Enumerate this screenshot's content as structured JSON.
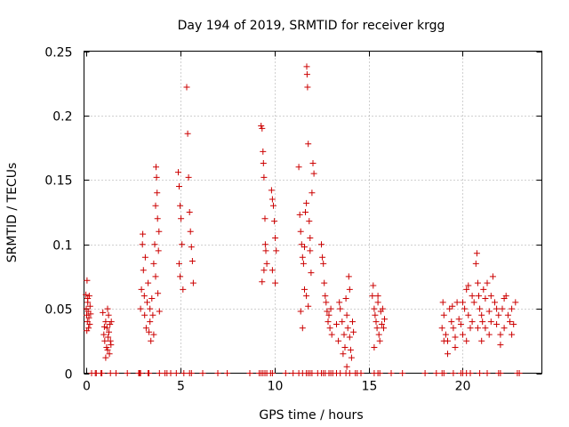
{
  "chart_data": {
    "type": "scatter",
    "title": "Day 194 of 2019, SRMTID for receiver krgg",
    "xlabel": "GPS time / hours",
    "ylabel": "SRMTID / TECUs",
    "xlim": [
      -0.1,
      24.2
    ],
    "ylim": [
      0,
      0.25
    ],
    "xticks": [
      0,
      5,
      10,
      15,
      20
    ],
    "xtick_labels": [
      "0",
      "5",
      "10",
      "15",
      "20"
    ],
    "yticks": [
      0,
      0.05,
      0.1,
      0.15,
      0.2,
      0.25
    ],
    "ytick_labels": [
      "0",
      "0.05",
      "0.1",
      "0.15",
      "0.2",
      "0.25"
    ],
    "grid": true,
    "marker": "+",
    "color": "#cc0000",
    "series": [
      {
        "name": "SRMTID",
        "points": [
          [
            0.0,
            0.061
          ],
          [
            0.02,
            0.05
          ],
          [
            0.04,
            0.045
          ],
          [
            0.06,
            0.072
          ],
          [
            0.08,
            0.04
          ],
          [
            0.1,
            0.055
          ],
          [
            0.12,
            0.048
          ],
          [
            0.14,
            0.035
          ],
          [
            0.16,
            0.043
          ],
          [
            0.18,
            0.06
          ],
          [
            0.2,
            0.038
          ],
          [
            0.22,
            0.052
          ],
          [
            0.25,
            0.046
          ],
          [
            0.1,
            0.058
          ],
          [
            0.05,
            0.033
          ],
          [
            0.9,
            0.047
          ],
          [
            0.95,
            0.03
          ],
          [
            1.0,
            0.025
          ],
          [
            1.05,
            0.04
          ],
          [
            1.1,
            0.02
          ],
          [
            1.12,
            0.035
          ],
          [
            1.15,
            0.018
          ],
          [
            1.18,
            0.028
          ],
          [
            1.2,
            0.045
          ],
          [
            1.22,
            0.032
          ],
          [
            1.25,
            0.015
          ],
          [
            1.28,
            0.038
          ],
          [
            1.3,
            0.025
          ],
          [
            1.33,
            0.022
          ],
          [
            1.35,
            0.04
          ],
          [
            1.05,
            0.012
          ],
          [
            1.15,
            0.05
          ],
          [
            0.98,
            0.036
          ],
          [
            2.9,
            0.05
          ],
          [
            2.95,
            0.065
          ],
          [
            3.0,
            0.1
          ],
          [
            3.02,
            0.108
          ],
          [
            3.05,
            0.08
          ],
          [
            3.1,
            0.06
          ],
          [
            3.12,
            0.045
          ],
          [
            3.15,
            0.09
          ],
          [
            3.2,
            0.035
          ],
          [
            3.25,
            0.055
          ],
          [
            3.3,
            0.07
          ],
          [
            3.35,
            0.032
          ],
          [
            3.4,
            0.04
          ],
          [
            3.45,
            0.025
          ],
          [
            3.5,
            0.058
          ],
          [
            3.55,
            0.045
          ],
          [
            3.6,
            0.085
          ],
          [
            3.65,
            0.1
          ],
          [
            3.7,
            0.075
          ],
          [
            3.72,
            0.16
          ],
          [
            3.75,
            0.152
          ],
          [
            3.78,
            0.14
          ],
          [
            3.8,
            0.12
          ],
          [
            3.82,
            0.062
          ],
          [
            3.85,
            0.095
          ],
          [
            3.88,
            0.11
          ],
          [
            3.9,
            0.048
          ],
          [
            3.6,
            0.03
          ],
          [
            3.4,
            0.05
          ],
          [
            3.7,
            0.13
          ],
          [
            4.9,
            0.156
          ],
          [
            4.95,
            0.145
          ],
          [
            5.0,
            0.13
          ],
          [
            5.05,
            0.12
          ],
          [
            5.1,
            0.1
          ],
          [
            5.15,
            0.065
          ],
          [
            5.0,
            0.075
          ],
          [
            4.95,
            0.085
          ],
          [
            5.35,
            0.222
          ],
          [
            5.4,
            0.186
          ],
          [
            5.45,
            0.152
          ],
          [
            5.5,
            0.125
          ],
          [
            5.55,
            0.11
          ],
          [
            5.6,
            0.098
          ],
          [
            5.65,
            0.087
          ],
          [
            5.7,
            0.07
          ],
          [
            9.3,
            0.192
          ],
          [
            9.35,
            0.19
          ],
          [
            9.4,
            0.172
          ],
          [
            9.42,
            0.163
          ],
          [
            9.45,
            0.152
          ],
          [
            9.5,
            0.12
          ],
          [
            9.52,
            0.1
          ],
          [
            9.55,
            0.095
          ],
          [
            9.6,
            0.085
          ],
          [
            9.35,
            0.071
          ],
          [
            9.45,
            0.08
          ],
          [
            9.85,
            0.142
          ],
          [
            9.9,
            0.135
          ],
          [
            9.95,
            0.13
          ],
          [
            10.0,
            0.118
          ],
          [
            10.05,
            0.105
          ],
          [
            10.1,
            0.095
          ],
          [
            9.9,
            0.08
          ],
          [
            10.05,
            0.07
          ],
          [
            11.3,
            0.16
          ],
          [
            11.35,
            0.123
          ],
          [
            11.4,
            0.11
          ],
          [
            11.45,
            0.1
          ],
          [
            11.5,
            0.09
          ],
          [
            11.55,
            0.085
          ],
          [
            11.6,
            0.098
          ],
          [
            11.65,
            0.125
          ],
          [
            11.7,
            0.132
          ],
          [
            11.72,
            0.238
          ],
          [
            11.74,
            0.232
          ],
          [
            11.76,
            0.222
          ],
          [
            11.8,
            0.178
          ],
          [
            11.85,
            0.118
          ],
          [
            11.9,
            0.095
          ],
          [
            11.95,
            0.078
          ],
          [
            12.0,
            0.14
          ],
          [
            12.05,
            0.163
          ],
          [
            12.1,
            0.155
          ],
          [
            11.4,
            0.048
          ],
          [
            11.5,
            0.035
          ],
          [
            11.6,
            0.065
          ],
          [
            11.7,
            0.06
          ],
          [
            11.8,
            0.052
          ],
          [
            11.9,
            0.105
          ],
          [
            12.5,
            0.1
          ],
          [
            12.55,
            0.09
          ],
          [
            12.6,
            0.085
          ],
          [
            12.65,
            0.07
          ],
          [
            12.7,
            0.06
          ],
          [
            12.75,
            0.055
          ],
          [
            12.8,
            0.048
          ],
          [
            12.85,
            0.04
          ],
          [
            12.9,
            0.045
          ],
          [
            12.95,
            0.035
          ],
          [
            13.0,
            0.05
          ],
          [
            13.05,
            0.03
          ],
          [
            13.3,
            0.038
          ],
          [
            13.4,
            0.025
          ],
          [
            13.5,
            0.05
          ],
          [
            13.6,
            0.04
          ],
          [
            13.7,
            0.03
          ],
          [
            13.75,
            0.02
          ],
          [
            13.8,
            0.058
          ],
          [
            13.85,
            0.045
          ],
          [
            13.9,
            0.035
          ],
          [
            13.95,
            0.075
          ],
          [
            14.0,
            0.028
          ],
          [
            14.05,
            0.018
          ],
          [
            14.1,
            0.012
          ],
          [
            14.15,
            0.04
          ],
          [
            14.2,
            0.032
          ],
          [
            13.85,
            0.005
          ],
          [
            14.0,
            0.065
          ],
          [
            13.45,
            0.055
          ],
          [
            13.65,
            0.015
          ],
          [
            15.2,
            0.06
          ],
          [
            15.25,
            0.068
          ],
          [
            15.3,
            0.05
          ],
          [
            15.35,
            0.045
          ],
          [
            15.4,
            0.04
          ],
          [
            15.45,
            0.035
          ],
          [
            15.5,
            0.055
          ],
          [
            15.55,
            0.03
          ],
          [
            15.6,
            0.025
          ],
          [
            15.65,
            0.048
          ],
          [
            15.7,
            0.038
          ],
          [
            15.75,
            0.05
          ],
          [
            15.8,
            0.035
          ],
          [
            15.85,
            0.042
          ],
          [
            15.3,
            0.02
          ],
          [
            15.5,
            0.06
          ],
          [
            18.9,
            0.035
          ],
          [
            19.0,
            0.045
          ],
          [
            19.1,
            0.03
          ],
          [
            19.2,
            0.025
          ],
          [
            19.3,
            0.05
          ],
          [
            19.4,
            0.04
          ],
          [
            19.5,
            0.035
          ],
          [
            19.6,
            0.028
          ],
          [
            19.7,
            0.055
          ],
          [
            19.8,
            0.042
          ],
          [
            19.9,
            0.038
          ],
          [
            20.0,
            0.03
          ],
          [
            20.1,
            0.05
          ],
          [
            20.2,
            0.065
          ],
          [
            20.3,
            0.045
          ],
          [
            20.4,
            0.035
          ],
          [
            20.5,
            0.04
          ],
          [
            20.6,
            0.055
          ],
          [
            20.7,
            0.085
          ],
          [
            20.75,
            0.093
          ],
          [
            20.8,
            0.07
          ],
          [
            20.85,
            0.06
          ],
          [
            20.9,
            0.05
          ],
          [
            21.0,
            0.045
          ],
          [
            21.1,
            0.065
          ],
          [
            21.2,
            0.058
          ],
          [
            21.3,
            0.07
          ],
          [
            21.4,
            0.048
          ],
          [
            21.5,
            0.04
          ],
          [
            21.6,
            0.075
          ],
          [
            21.7,
            0.055
          ],
          [
            21.8,
            0.038
          ],
          [
            21.9,
            0.045
          ],
          [
            22.0,
            0.03
          ],
          [
            22.1,
            0.05
          ],
          [
            22.2,
            0.035
          ],
          [
            22.3,
            0.06
          ],
          [
            22.4,
            0.045
          ],
          [
            22.5,
            0.04
          ],
          [
            22.6,
            0.03
          ],
          [
            22.7,
            0.038
          ],
          [
            22.8,
            0.055
          ],
          [
            19.2,
            0.015
          ],
          [
            19.6,
            0.02
          ],
          [
            20.2,
            0.025
          ],
          [
            21.0,
            0.025
          ],
          [
            21.4,
            0.03
          ],
          [
            22.0,
            0.022
          ],
          [
            20.0,
            0.055
          ],
          [
            19.0,
            0.025
          ],
          [
            20.8,
            0.035
          ],
          [
            21.5,
            0.06
          ],
          [
            22.2,
            0.058
          ],
          [
            18.95,
            0.055
          ],
          [
            19.45,
            0.052
          ],
          [
            20.5,
            0.06
          ],
          [
            21.2,
            0.035
          ],
          [
            21.8,
            0.05
          ],
          [
            22.6,
            0.05
          ],
          [
            20.3,
            0.068
          ],
          [
            21.05,
            0.04
          ],
          [
            0.3,
            0.0
          ],
          [
            0.5,
            0.0
          ],
          [
            0.55,
            0.0
          ],
          [
            0.8,
            0.0
          ],
          [
            0.85,
            0.0
          ],
          [
            1.3,
            0.0
          ],
          [
            1.6,
            0.0
          ],
          [
            2.2,
            0.0
          ],
          [
            2.8,
            0.0
          ],
          [
            2.85,
            0.0
          ],
          [
            2.9,
            0.0
          ],
          [
            3.3,
            0.0
          ],
          [
            3.35,
            0.0
          ],
          [
            3.9,
            0.0
          ],
          [
            4.2,
            0.0
          ],
          [
            4.3,
            0.0
          ],
          [
            4.5,
            0.0
          ],
          [
            4.8,
            0.0
          ],
          [
            5.2,
            0.0
          ],
          [
            5.5,
            0.0
          ],
          [
            5.6,
            0.0
          ],
          [
            6.2,
            0.0
          ],
          [
            7.0,
            0.0
          ],
          [
            7.5,
            0.0
          ],
          [
            8.7,
            0.0
          ],
          [
            9.2,
            0.0
          ],
          [
            9.3,
            0.0
          ],
          [
            9.4,
            0.0
          ],
          [
            9.5,
            0.0
          ],
          [
            9.6,
            0.0
          ],
          [
            9.8,
            0.0
          ],
          [
            9.9,
            0.0
          ],
          [
            10.6,
            0.0
          ],
          [
            11.0,
            0.0
          ],
          [
            11.3,
            0.0
          ],
          [
            11.5,
            0.0
          ],
          [
            11.7,
            0.0
          ],
          [
            11.8,
            0.0
          ],
          [
            11.9,
            0.0
          ],
          [
            12.0,
            0.0
          ],
          [
            12.3,
            0.0
          ],
          [
            12.5,
            0.0
          ],
          [
            12.6,
            0.0
          ],
          [
            12.7,
            0.0
          ],
          [
            12.9,
            0.0
          ],
          [
            13.0,
            0.0
          ],
          [
            13.1,
            0.0
          ],
          [
            13.3,
            0.0
          ],
          [
            13.5,
            0.0
          ],
          [
            13.8,
            0.0
          ],
          [
            14.0,
            0.0
          ],
          [
            14.3,
            0.0
          ],
          [
            14.4,
            0.0
          ],
          [
            14.6,
            0.0
          ],
          [
            15.3,
            0.0
          ],
          [
            15.5,
            0.0
          ],
          [
            15.6,
            0.0
          ],
          [
            16.2,
            0.0
          ],
          [
            16.8,
            0.0
          ],
          [
            18.0,
            0.0
          ],
          [
            18.6,
            0.0
          ],
          [
            18.9,
            0.0
          ],
          [
            19.0,
            0.0
          ],
          [
            19.5,
            0.0
          ],
          [
            19.9,
            0.0
          ],
          [
            20.0,
            0.0
          ],
          [
            20.2,
            0.0
          ],
          [
            20.4,
            0.0
          ],
          [
            20.9,
            0.0
          ],
          [
            21.3,
            0.0
          ],
          [
            21.9,
            0.0
          ],
          [
            22.0,
            0.0
          ],
          [
            22.9,
            0.0
          ],
          [
            23.0,
            0.0
          ]
        ]
      }
    ]
  }
}
